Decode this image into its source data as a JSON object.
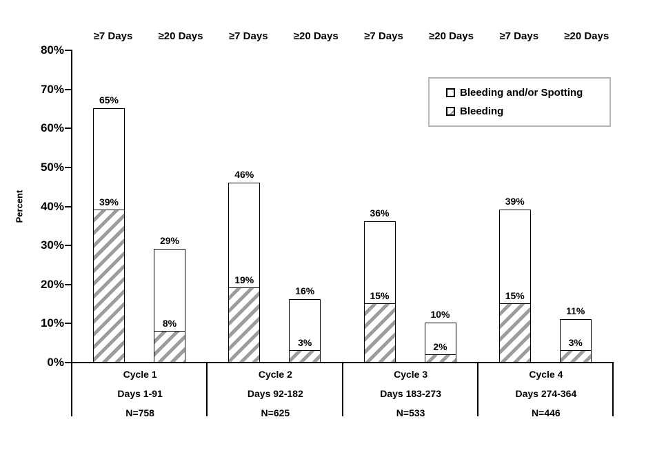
{
  "chart_data": {
    "type": "bar",
    "subtype": "grouped-stacked",
    "title": "",
    "ylabel": "Percent",
    "xlabel": "",
    "ylim": [
      0,
      80
    ],
    "y_ticks": [
      0,
      10,
      20,
      30,
      40,
      50,
      60,
      70,
      80
    ],
    "y_tick_labels": [
      "0%",
      "10%",
      "20%",
      "30%",
      "40%",
      "50%",
      "60%",
      "70%",
      "80%"
    ],
    "grid": false,
    "legend_position": "top-right",
    "legend": [
      {
        "label": "Bleeding and/or Spotting",
        "swatch": "white"
      },
      {
        "label": "Bleeding",
        "swatch": "hatched"
      }
    ],
    "column_labels": [
      "≥7 Days",
      "≥20 Days"
    ],
    "groups": [
      {
        "label": "Cycle 1",
        "sublabel": "Days 1-91",
        "n_label": "N=758",
        "bars": [
          {
            "column": "≥7 Days",
            "bleeding_and_or_spotting": 65,
            "bleeding": 39,
            "total_label": "65%",
            "bleeding_label": "39%"
          },
          {
            "column": "≥20 Days",
            "bleeding_and_or_spotting": 29,
            "bleeding": 8,
            "total_label": "29%",
            "bleeding_label": "8%"
          }
        ]
      },
      {
        "label": "Cycle 2",
        "sublabel": "Days 92-182",
        "n_label": "N=625",
        "bars": [
          {
            "column": "≥7 Days",
            "bleeding_and_or_spotting": 46,
            "bleeding": 19,
            "total_label": "46%",
            "bleeding_label": "19%"
          },
          {
            "column": "≥20 Days",
            "bleeding_and_or_spotting": 16,
            "bleeding": 3,
            "total_label": "16%",
            "bleeding_label": "3%"
          }
        ]
      },
      {
        "label": "Cycle 3",
        "sublabel": "Days 183-273",
        "n_label": "N=533",
        "bars": [
          {
            "column": "≥7 Days",
            "bleeding_and_or_spotting": 36,
            "bleeding": 15,
            "total_label": "36%",
            "bleeding_label": "15%"
          },
          {
            "column": "≥20 Days",
            "bleeding_and_or_spotting": 10,
            "bleeding": 2,
            "total_label": "10%",
            "bleeding_label": "2%"
          }
        ]
      },
      {
        "label": "Cycle 4",
        "sublabel": "Days 274-364",
        "n_label": "N=446",
        "bars": [
          {
            "column": "≥7 Days",
            "bleeding_and_or_spotting": 39,
            "bleeding": 15,
            "total_label": "39%",
            "bleeding_label": "15%"
          },
          {
            "column": "≥20 Days",
            "bleeding_and_or_spotting": 11,
            "bleeding": 3,
            "total_label": "11%",
            "bleeding_label": "3%"
          }
        ]
      }
    ],
    "colors": {
      "bar_fill": "#ffffff",
      "bar_border": "#000000",
      "hatch_stripe": "#9c9c9c",
      "axis": "#000000",
      "text": "#000000",
      "legend_border": "#b5b5b5"
    }
  }
}
